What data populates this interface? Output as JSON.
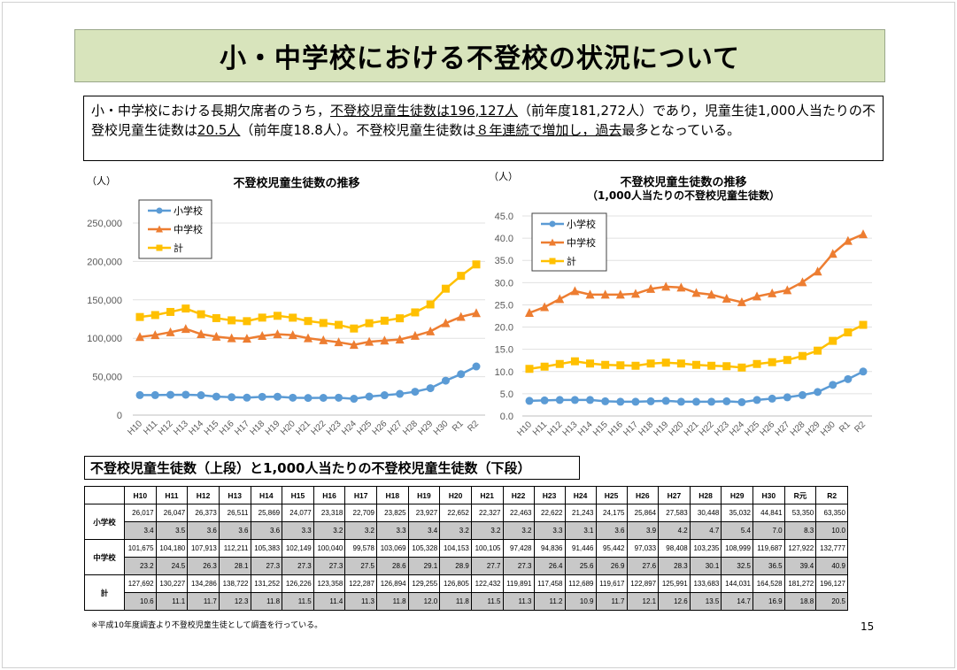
{
  "header": {
    "title": "小・中学校における不登校の状況について"
  },
  "summary": {
    "t1": "小・中学校における長期欠席者のうち，",
    "u1": "不登校児童生徒数は196,127人",
    "t2": "（前年度181,272人）であり，児童生徒1,000人当たりの不登校児童生徒数は",
    "u2": "20.5人",
    "t3": "（前年度18.8人）。不登校児童生徒数は",
    "u3": "８年連続で増加し，過去",
    "t4": "最多となっている。"
  },
  "chart_data": [
    {
      "type": "line",
      "title": "不登校児童生徒数の推移",
      "ylabel": "（人）",
      "ylim": [
        0,
        250000
      ],
      "yticks": [
        "0",
        "50,000",
        "100,000",
        "150,000",
        "200,000",
        "250,000"
      ],
      "grid": true,
      "legend": "top-left",
      "categories": [
        "H10",
        "H11",
        "H12",
        "H13",
        "H14",
        "H15",
        "H16",
        "H17",
        "H18",
        "H19",
        "H20",
        "H21",
        "H22",
        "H23",
        "H24",
        "H25",
        "H26",
        "H27",
        "H28",
        "H29",
        "H30",
        "R1",
        "R2"
      ],
      "series": [
        {
          "name": "小学校",
          "color": "#5b9bd5",
          "marker": "circle",
          "values": [
            26017,
            26047,
            26373,
            26511,
            25869,
            24077,
            23318,
            22709,
            23825,
            23927,
            22652,
            22327,
            22463,
            22622,
            21243,
            24175,
            25864,
            27583,
            30448,
            35032,
            44841,
            53350,
            63350
          ]
        },
        {
          "name": "中学校",
          "color": "#ed7d31",
          "marker": "triangle",
          "values": [
            101675,
            104180,
            107913,
            112211,
            105383,
            102149,
            100040,
            99578,
            103069,
            105328,
            104153,
            100105,
            97428,
            94836,
            91446,
            95442,
            97033,
            98408,
            103235,
            108999,
            119687,
            127922,
            132777
          ]
        },
        {
          "name": "計",
          "color": "#ffc000",
          "marker": "square",
          "values": [
            127692,
            130227,
            134286,
            138722,
            131252,
            126226,
            123358,
            122287,
            126894,
            129255,
            126805,
            122432,
            119891,
            117458,
            112689,
            119617,
            122897,
            125991,
            133683,
            144031,
            164528,
            181272,
            196127
          ]
        }
      ]
    },
    {
      "type": "line",
      "title": "不登校児童生徒数の推移",
      "subtitle": "（1,000人当たりの不登校児童生徒数）",
      "ylabel": "（人）",
      "ylim": [
        0,
        45
      ],
      "yticks": [
        "0.0",
        "5.0",
        "10.0",
        "15.0",
        "20.0",
        "25.0",
        "30.0",
        "35.0",
        "40.0",
        "45.0"
      ],
      "grid": true,
      "legend": "top-left",
      "categories": [
        "H10",
        "H11",
        "H12",
        "H13",
        "H14",
        "H15",
        "H16",
        "H17",
        "H18",
        "H19",
        "H20",
        "H21",
        "H22",
        "H23",
        "H24",
        "H25",
        "H26",
        "H27",
        "H28",
        "H29",
        "H30",
        "R1",
        "R2"
      ],
      "series": [
        {
          "name": "小学校",
          "color": "#5b9bd5",
          "marker": "circle",
          "values": [
            3.4,
            3.5,
            3.6,
            3.6,
            3.6,
            3.3,
            3.2,
            3.2,
            3.3,
            3.4,
            3.2,
            3.2,
            3.2,
            3.3,
            3.1,
            3.6,
            3.9,
            4.2,
            4.7,
            5.4,
            7.0,
            8.3,
            10.0
          ]
        },
        {
          "name": "中学校",
          "color": "#ed7d31",
          "marker": "triangle",
          "values": [
            23.2,
            24.5,
            26.3,
            28.1,
            27.3,
            27.3,
            27.3,
            27.5,
            28.6,
            29.1,
            28.9,
            27.7,
            27.3,
            26.4,
            25.6,
            26.9,
            27.6,
            28.3,
            30.1,
            32.5,
            36.5,
            39.4,
            40.9
          ]
        },
        {
          "name": "計",
          "color": "#ffc000",
          "marker": "square",
          "values": [
            10.6,
            11.1,
            11.7,
            12.3,
            11.8,
            11.5,
            11.4,
            11.3,
            11.8,
            12.0,
            11.8,
            11.5,
            11.3,
            11.2,
            10.9,
            11.7,
            12.1,
            12.6,
            13.5,
            14.7,
            16.9,
            18.8,
            20.5
          ]
        }
      ]
    }
  ],
  "table": {
    "title": "不登校児童生徒数（上段）と1,000人当たりの不登校児童生徒数（下段）",
    "headers": [
      "H10",
      "H11",
      "H12",
      "H13",
      "H14",
      "H15",
      "H16",
      "H17",
      "H18",
      "H19",
      "H20",
      "H21",
      "H22",
      "H23",
      "H24",
      "H25",
      "H26",
      "H27",
      "H28",
      "H29",
      "H30",
      "R元",
      "R2"
    ],
    "rows": [
      {
        "label": "小学校",
        "counts": [
          "26,017",
          "26,047",
          "26,373",
          "26,511",
          "25,869",
          "24,077",
          "23,318",
          "22,709",
          "23,825",
          "23,927",
          "22,652",
          "22,327",
          "22,463",
          "22,622",
          "21,243",
          "24,175",
          "25,864",
          "27,583",
          "30,448",
          "35,032",
          "44,841",
          "53,350",
          "63,350"
        ],
        "rates": [
          "3.4",
          "3.5",
          "3.6",
          "3.6",
          "3.6",
          "3.3",
          "3.2",
          "3.2",
          "3.3",
          "3.4",
          "3.2",
          "3.2",
          "3.2",
          "3.3",
          "3.1",
          "3.6",
          "3.9",
          "4.2",
          "4.7",
          "5.4",
          "7.0",
          "8.3",
          "10.0"
        ]
      },
      {
        "label": "中学校",
        "counts": [
          "101,675",
          "104,180",
          "107,913",
          "112,211",
          "105,383",
          "102,149",
          "100,040",
          "99,578",
          "103,069",
          "105,328",
          "104,153",
          "100,105",
          "97,428",
          "94,836",
          "91,446",
          "95,442",
          "97,033",
          "98,408",
          "103,235",
          "108,999",
          "119,687",
          "127,922",
          "132,777"
        ],
        "rates": [
          "23.2",
          "24.5",
          "26.3",
          "28.1",
          "27.3",
          "27.3",
          "27.3",
          "27.5",
          "28.6",
          "29.1",
          "28.9",
          "27.7",
          "27.3",
          "26.4",
          "25.6",
          "26.9",
          "27.6",
          "28.3",
          "30.1",
          "32.5",
          "36.5",
          "39.4",
          "40.9"
        ]
      },
      {
        "label": "計",
        "counts": [
          "127,692",
          "130,227",
          "134,286",
          "138,722",
          "131,252",
          "126,226",
          "123,358",
          "122,287",
          "126,894",
          "129,255",
          "126,805",
          "122,432",
          "119,891",
          "117,458",
          "112,689",
          "119,617",
          "122,897",
          "125,991",
          "133,683",
          "144,031",
          "164,528",
          "181,272",
          "196,127"
        ],
        "rates": [
          "10.6",
          "11.1",
          "11.7",
          "12.3",
          "11.8",
          "11.5",
          "11.4",
          "11.3",
          "11.8",
          "12.0",
          "11.8",
          "11.5",
          "11.3",
          "11.2",
          "10.9",
          "11.7",
          "12.1",
          "12.6",
          "13.5",
          "14.7",
          "16.9",
          "18.8",
          "20.5"
        ]
      }
    ]
  },
  "footnote": "※平成10年度調査より不登校児童生徒として調査を行っている。",
  "page_number": "15"
}
